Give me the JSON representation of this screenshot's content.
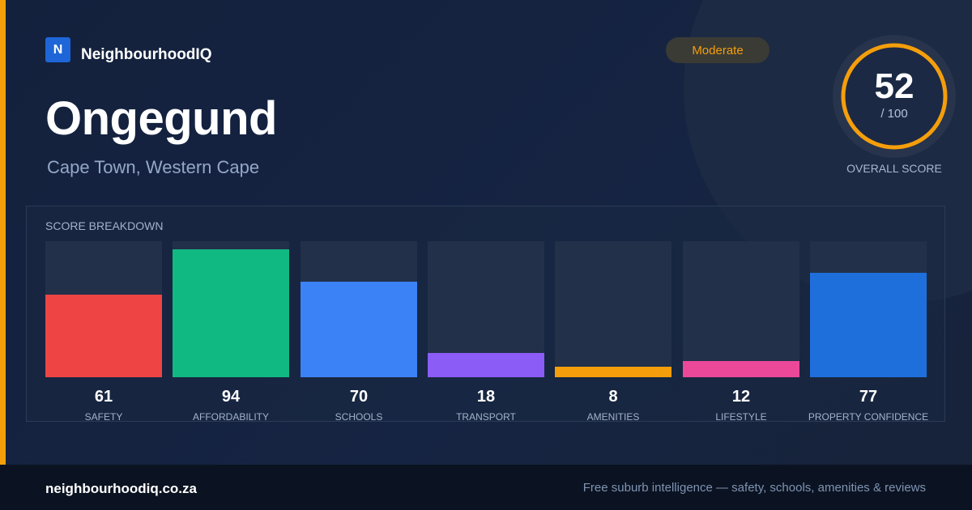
{
  "brand": {
    "logo_letter": "N",
    "name": "NeighbourhoodIQ",
    "logo_color": "#1e66d8"
  },
  "badge": {
    "label": "Moderate",
    "color": "#f59e0b"
  },
  "suburb": {
    "name": "Ongegund",
    "location": "Cape Town, Western Cape"
  },
  "overall": {
    "score": "52",
    "max_label": "/ 100",
    "label": "OVERALL SCORE",
    "ring_color": "#f59e0b"
  },
  "breakdown": {
    "title": "SCORE BREAKDOWN",
    "categories": [
      {
        "label": "SAFETY",
        "value": "61",
        "score": 61,
        "color": "#ef4444"
      },
      {
        "label": "AFFORDABILITY",
        "value": "94",
        "score": 94,
        "color": "#10b981"
      },
      {
        "label": "SCHOOLS",
        "value": "70",
        "score": 70,
        "color": "#3b82f6"
      },
      {
        "label": "TRANSPORT",
        "value": "18",
        "score": 18,
        "color": "#8b5cf6"
      },
      {
        "label": "AMENITIES",
        "value": "8",
        "score": 8,
        "color": "#f59e0b"
      },
      {
        "label": "LIFESTYLE",
        "value": "12",
        "score": 12,
        "color": "#ec4899"
      },
      {
        "label": "PROPERTY CONFIDENCE",
        "value": "77",
        "score": 77,
        "color": "#1e6fdc"
      }
    ]
  },
  "footer": {
    "site": "neighbourhoodiq.co.za",
    "tagline": "Free suburb intelligence — safety, schools, amenities & reviews"
  },
  "colors": {
    "accent": "#f59e0b",
    "background": "#14213a",
    "footer_background": "#0b1322"
  }
}
